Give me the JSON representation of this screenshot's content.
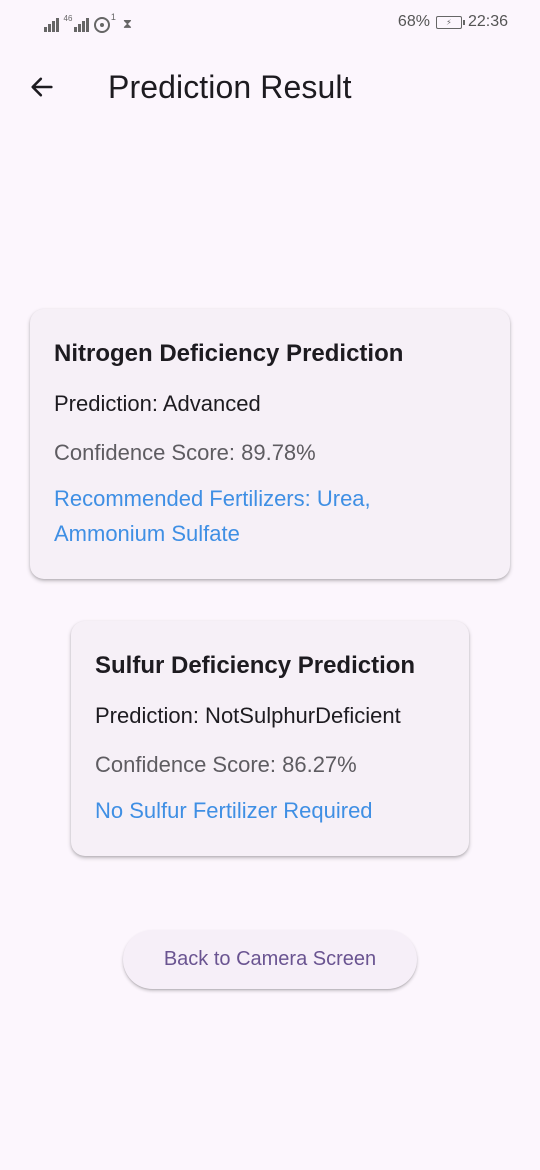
{
  "status_bar": {
    "network_tag": "46",
    "hotspot_count": "1",
    "battery_percent": "68%",
    "time": "22:36"
  },
  "app_bar": {
    "back_icon": "arrow-left-icon",
    "title": "Prediction Result"
  },
  "nitrogen_card": {
    "title": "Nitrogen Deficiency Prediction",
    "prediction": "Prediction: Advanced",
    "confidence": "Confidence Score: 89.78%",
    "recommendation": "Recommended Fertilizers: Urea, Ammonium Sulfate"
  },
  "sulfur_card": {
    "title": "Sulfur Deficiency Prediction",
    "prediction": "Prediction: NotSulphurDeficient",
    "confidence": "Confidence Score: 86.27%",
    "recommendation": "No Sulfur Fertilizer Required"
  },
  "actions": {
    "back_button_label": "Back to Camera Screen"
  },
  "colors": {
    "background": "#fcf6fd",
    "card": "#f6f0f7",
    "recommendation_text": "#3f8fe4",
    "button_text": "#6a5491"
  }
}
